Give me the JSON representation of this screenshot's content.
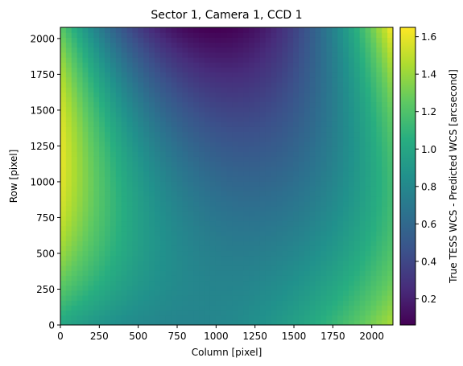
{
  "chart_data": {
    "type": "heatmap",
    "title": "Sector 1, Camera 1, CCD 1",
    "xlabel": "Column [pixel]",
    "ylabel": "Row [pixel]",
    "xlim": [
      0,
      2136
    ],
    "ylim": [
      0,
      2078
    ],
    "xticks": [
      0,
      250,
      500,
      750,
      1000,
      1250,
      1500,
      1750,
      2000
    ],
    "yticks": [
      0,
      250,
      500,
      750,
      1000,
      1250,
      1500,
      1750,
      2000
    ],
    "colorbar": {
      "label": "True TESS WCS - Predicted WCS [arcsecond]",
      "colormap": "viridis",
      "vmin": 0.06,
      "vmax": 1.65,
      "ticks": [
        0.2,
        0.4,
        0.6,
        0.8,
        1.0,
        1.2,
        1.4,
        1.6
      ],
      "tick_labels": [
        "0.2",
        "0.4",
        "0.6",
        "0.8",
        "1.0",
        "1.2",
        "1.4",
        "1.6"
      ]
    },
    "grid": false,
    "sample_values": [
      {
        "column": 0,
        "row": 2078,
        "value": 1.25
      },
      {
        "column": 1068,
        "row": 2078,
        "value": 0.06
      },
      {
        "column": 2136,
        "row": 2078,
        "value": 1.65
      },
      {
        "column": 0,
        "row": 1250,
        "value": 1.6
      },
      {
        "column": 1068,
        "row": 1250,
        "value": 0.5
      },
      {
        "column": 2136,
        "row": 1250,
        "value": 1.2
      },
      {
        "column": 0,
        "row": 0,
        "value": 1.0
      },
      {
        "column": 1068,
        "row": 0,
        "value": 0.8
      },
      {
        "column": 2136,
        "row": 0,
        "value": 1.45
      }
    ]
  }
}
